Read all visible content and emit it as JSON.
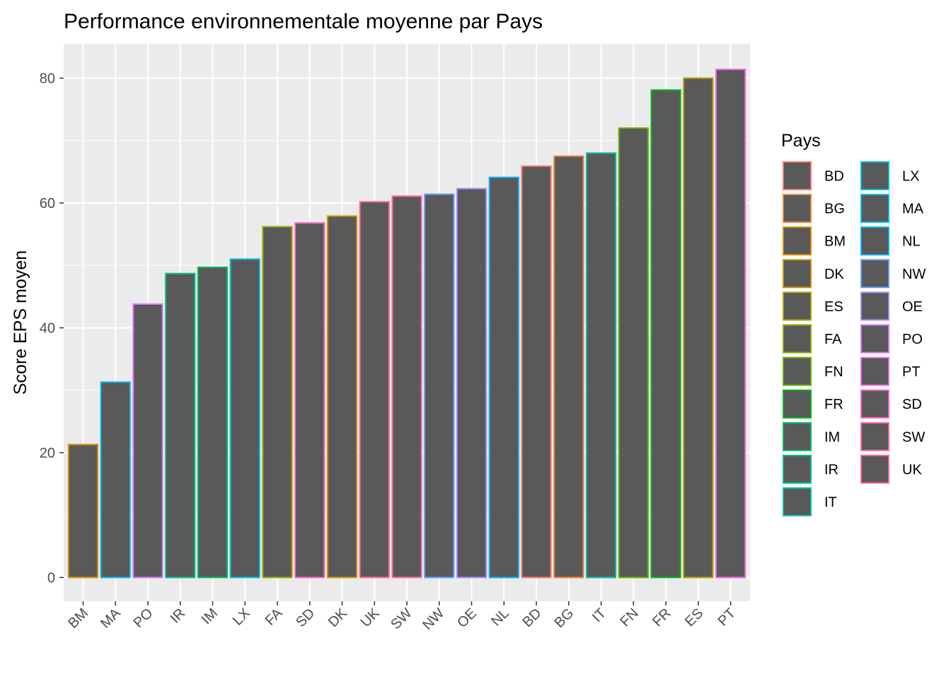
{
  "chart_data": {
    "type": "bar",
    "title": "Performance environnementale moyenne par Pays",
    "xlabel": "",
    "ylabel": "Score EPS moyen",
    "ylim": [
      -3.8,
      85.5
    ],
    "yticks": [
      0,
      20,
      40,
      60,
      80
    ],
    "grid": true,
    "bar_fill": "#595959",
    "panel_background": "#ebebeb",
    "categories": [
      "BM",
      "MA",
      "PO",
      "IR",
      "IM",
      "LX",
      "FA",
      "SD",
      "DK",
      "UK",
      "SW",
      "NW",
      "OE",
      "NL",
      "BD",
      "BG",
      "IT",
      "FN",
      "FR",
      "ES",
      "PT"
    ],
    "values": [
      21.3,
      31.3,
      43.8,
      48.7,
      49.7,
      51.0,
      56.2,
      56.8,
      57.9,
      60.2,
      61.1,
      61.4,
      62.3,
      64.1,
      65.9,
      67.5,
      68.0,
      72.0,
      78.1,
      80.0,
      81.4
    ],
    "outline_colors": {
      "BD": "#F8766D",
      "BG": "#EC8239",
      "BM": "#DB8E00",
      "DK": "#C79800",
      "ES": "#AFA100",
      "FA": "#93AA00",
      "FN": "#6BB100",
      "FR": "#00B81F",
      "IM": "#00BD5C",
      "IR": "#00C08D",
      "IT": "#00C1B2",
      "LX": "#00BFD4",
      "MA": "#00BAEE",
      "NL": "#00B0F6",
      "NW": "#619CFF",
      "OE": "#A58AFF",
      "PO": "#D874FD",
      "PT": "#F265E7",
      "SD": "#FF61C7",
      "SW": "#FF66A8",
      "UK": "#FF6C90"
    },
    "legend": {
      "title": "Pays",
      "placement": "right",
      "columns": [
        [
          "BD",
          "BG",
          "BM",
          "DK",
          "ES",
          "FA",
          "FN",
          "FR",
          "IM",
          "IR",
          "IT"
        ],
        [
          "LX",
          "MA",
          "NL",
          "NW",
          "OE",
          "PO",
          "PT",
          "SD",
          "SW",
          "UK"
        ]
      ]
    }
  }
}
